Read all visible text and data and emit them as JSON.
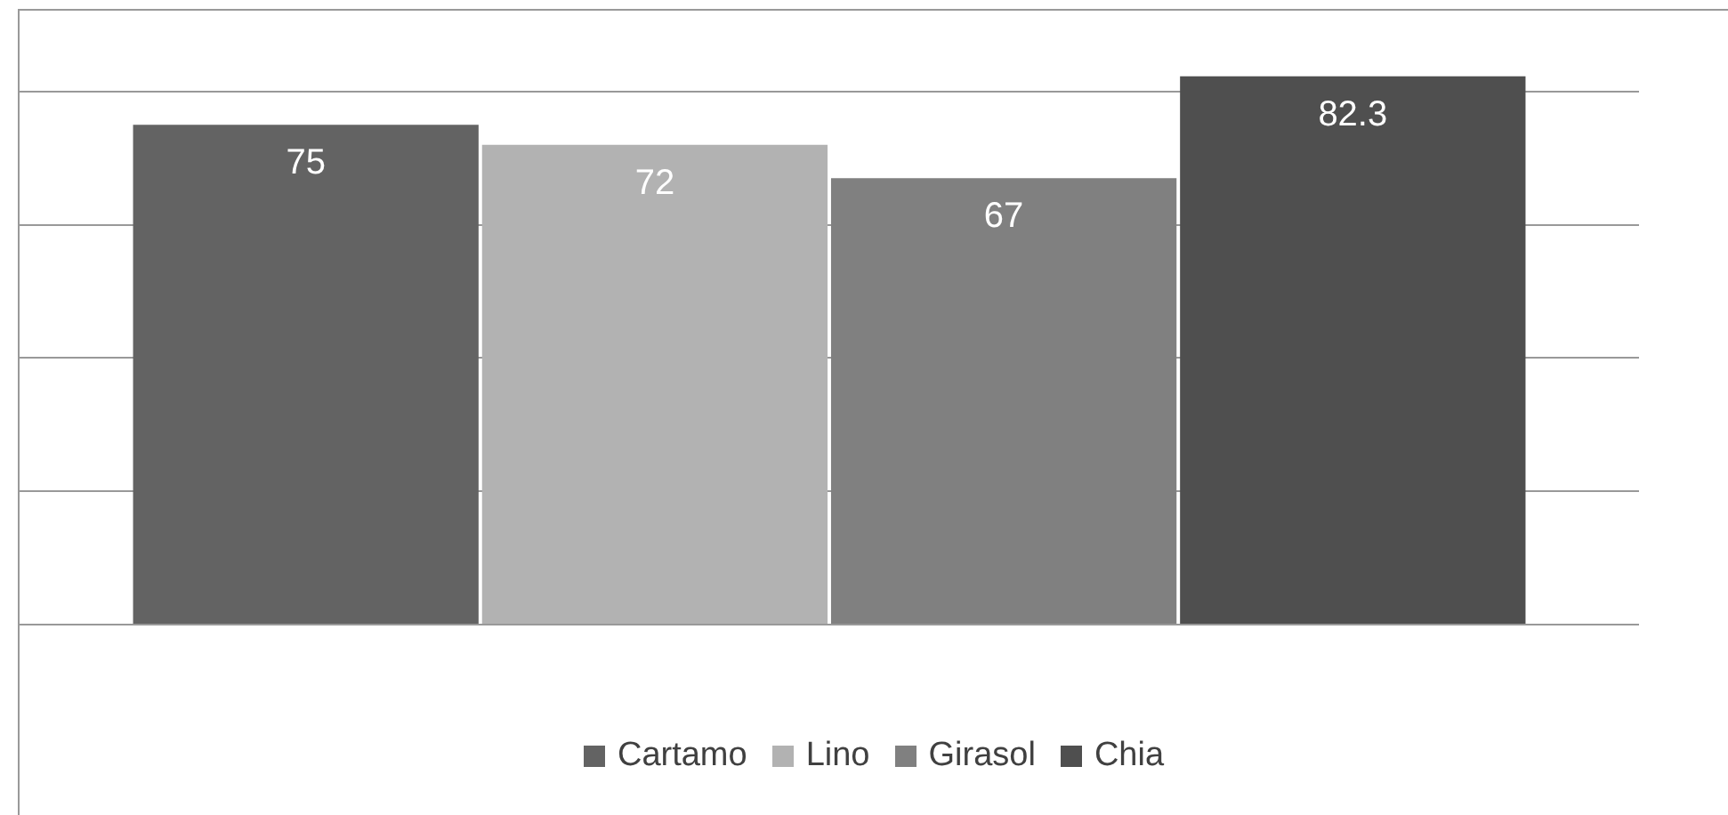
{
  "chart_data": {
    "type": "bar",
    "categories": [
      null
    ],
    "series": [
      {
        "name": "Cartamo",
        "color": "#636363",
        "values": [
          75
        ]
      },
      {
        "name": "Lino",
        "color": "#b2b2b2",
        "values": [
          72
        ]
      },
      {
        "name": "Girasol",
        "color": "#808080",
        "values": [
          67
        ]
      },
      {
        "name": "Chia",
        "color": "#4f4f4f",
        "values": [
          82.3
        ]
      }
    ],
    "yticks": [
      {
        "value": 0,
        "label": null
      },
      {
        "value": 20,
        "label": null
      },
      {
        "value": 40,
        "label": null
      },
      {
        "value": 60,
        "label": null
      },
      {
        "value": 80,
        "label": null
      }
    ],
    "tick_labels": false,
    "grid": "y",
    "legend": "bottom",
    "data_labels": true
  }
}
